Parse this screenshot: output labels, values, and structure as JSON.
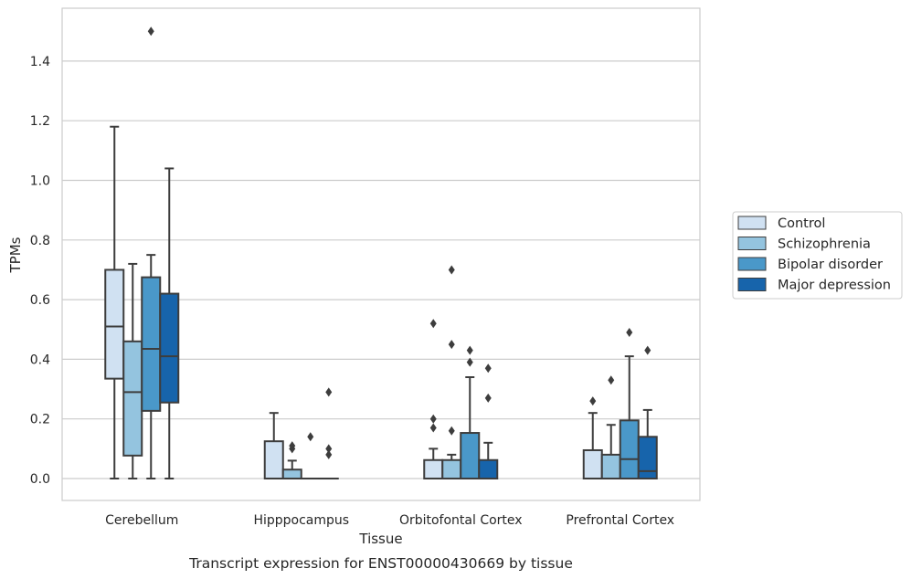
{
  "chart_data": {
    "type": "box",
    "title": "",
    "caption": "Transcript expression for ENST00000430669 by tissue",
    "xlabel": "Tissue",
    "ylabel": "TPMs",
    "ylim": [
      -0.07,
      1.57
    ],
    "yticks": [
      "0.0",
      "0.2",
      "0.4",
      "0.6",
      "0.8",
      "1.0",
      "1.2",
      "1.4"
    ],
    "grid": "horizontal",
    "legend_position": "right",
    "categories": [
      "Cerebellum",
      "Hipppocampus",
      "Orbitofontal Cortex",
      "Prefrontal Cortex"
    ],
    "series": [
      {
        "name": "Control",
        "color": "#d0e1f2",
        "boxes": [
          {
            "q1": 0.335,
            "median": 0.51,
            "q3": 0.7,
            "whisker_low": 0.0,
            "whisker_high": 1.18,
            "outliers": []
          },
          {
            "q1": 0.0,
            "median": 0.0,
            "q3": 0.125,
            "whisker_low": 0.0,
            "whisker_high": 0.22,
            "outliers": []
          },
          {
            "q1": 0.0,
            "median": 0.0,
            "q3": 0.062,
            "whisker_low": 0.0,
            "whisker_high": 0.1,
            "outliers": [
              0.17,
              0.2,
              0.52
            ]
          },
          {
            "q1": 0.0,
            "median": 0.0,
            "q3": 0.095,
            "whisker_low": 0.0,
            "whisker_high": 0.22,
            "outliers": [
              0.26
            ]
          }
        ]
      },
      {
        "name": "Schizophrenia",
        "color": "#94c4df",
        "boxes": [
          {
            "q1": 0.077,
            "median": 0.29,
            "q3": 0.46,
            "whisker_low": 0.0,
            "whisker_high": 0.72,
            "outliers": []
          },
          {
            "q1": 0.0,
            "median": 0.0,
            "q3": 0.03,
            "whisker_low": 0.0,
            "whisker_high": 0.06,
            "outliers": [
              0.1,
              0.11
            ]
          },
          {
            "q1": 0.0,
            "median": 0.0,
            "q3": 0.062,
            "whisker_low": 0.0,
            "whisker_high": 0.08,
            "outliers": [
              0.16,
              0.45,
              0.7
            ]
          },
          {
            "q1": 0.0,
            "median": 0.0,
            "q3": 0.08,
            "whisker_low": 0.0,
            "whisker_high": 0.18,
            "outliers": [
              0.33
            ]
          }
        ]
      },
      {
        "name": "Bipolar disorder",
        "color": "#4a98c9",
        "boxes": [
          {
            "q1": 0.227,
            "median": 0.435,
            "q3": 0.675,
            "whisker_low": 0.0,
            "whisker_high": 0.75,
            "outliers": [
              1.5
            ]
          },
          {
            "q1": 0.0,
            "median": 0.0,
            "q3": 0.0,
            "whisker_low": 0.0,
            "whisker_high": 0.0,
            "outliers": [
              0.14
            ]
          },
          {
            "q1": 0.0,
            "median": 0.0,
            "q3": 0.153,
            "whisker_low": 0.0,
            "whisker_high": 0.34,
            "outliers": [
              0.39,
              0.43
            ]
          },
          {
            "q1": 0.0,
            "median": 0.065,
            "q3": 0.195,
            "whisker_low": 0.0,
            "whisker_high": 0.41,
            "outliers": [
              0.49
            ]
          }
        ]
      },
      {
        "name": "Major depression",
        "color": "#1764ab",
        "boxes": [
          {
            "q1": 0.255,
            "median": 0.41,
            "q3": 0.62,
            "whisker_low": 0.0,
            "whisker_high": 1.04,
            "outliers": []
          },
          {
            "q1": 0.0,
            "median": 0.0,
            "q3": 0.0,
            "whisker_low": 0.0,
            "whisker_high": 0.0,
            "outliers": [
              0.08,
              0.1,
              0.29
            ]
          },
          {
            "q1": 0.0,
            "median": 0.0,
            "q3": 0.062,
            "whisker_low": 0.0,
            "whisker_high": 0.12,
            "outliers": [
              0.27,
              0.37
            ]
          },
          {
            "q1": 0.0,
            "median": 0.025,
            "q3": 0.14,
            "whisker_low": 0.0,
            "whisker_high": 0.23,
            "outliers": [
              0.43
            ]
          }
        ]
      }
    ]
  }
}
